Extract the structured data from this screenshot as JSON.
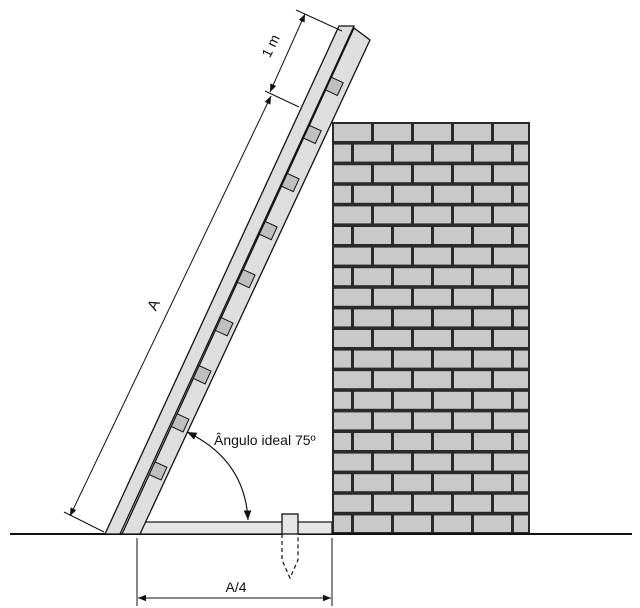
{
  "labels": {
    "top_segment": "1 m",
    "ladder_length": "A",
    "angle": "Ângulo ideal 75º",
    "base_distance": "A/4"
  },
  "colors": {
    "brick": "#c9c9c9",
    "mortar": "#2a2a2a",
    "ladder_rail": "#dedede",
    "ladder_rung": "#bfbfbf",
    "stroke": "#111111",
    "stake": "#e6e6e6"
  }
}
